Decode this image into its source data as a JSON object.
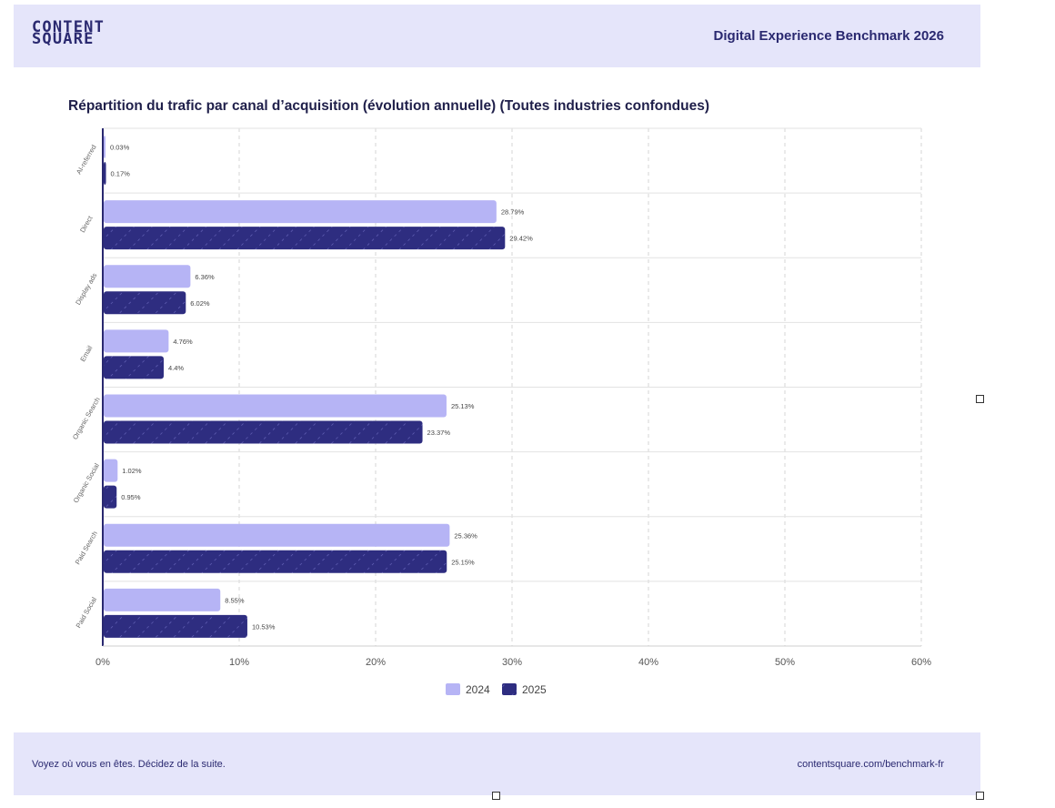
{
  "header": {
    "logo_line1": "CONTENT",
    "logo_line2": "SQUARE",
    "report_title": "Digital Experience Benchmark 2026"
  },
  "footer": {
    "tagline": "Voyez où vous en êtes. Décidez de la suite.",
    "url": "contentsquare.com/benchmark-fr"
  },
  "colors": {
    "series_2024": "#b6b4f5",
    "series_2025": "#2e2d80",
    "band": "#e5e5fa",
    "text_dark": "#2a2970"
  },
  "chart_data": {
    "type": "bar",
    "orientation": "horizontal",
    "title": "Répartition du trafic par canal d’acquisition (évolution annuelle) (Toutes industries confondues)",
    "categories": [
      "AI-referred",
      "Direct",
      "Display ads",
      "Email",
      "Organic Search",
      "Organic Social",
      "Paid Search",
      "Paid Social"
    ],
    "series": [
      {
        "name": "2024",
        "values": [
          0.03,
          28.79,
          6.36,
          4.76,
          25.13,
          1.02,
          25.36,
          8.55
        ],
        "labels": [
          "0.03%",
          "28.79%",
          "6.36%",
          "4.76%",
          "25.13%",
          "1.02%",
          "25.36%",
          "8.55%"
        ]
      },
      {
        "name": "2025",
        "values": [
          0.17,
          29.42,
          6.02,
          4.4,
          23.37,
          0.95,
          25.15,
          10.53
        ],
        "labels": [
          "0.17%",
          "29.42%",
          "6.02%",
          "4.4%",
          "23.37%",
          "0.95%",
          "25.15%",
          "10.53%"
        ],
        "pattern": "diagonal-hatch"
      }
    ],
    "xlim": [
      0,
      60
    ],
    "xticks": [
      "0%",
      "10%",
      "20%",
      "30%",
      "40%",
      "50%",
      "60%"
    ],
    "grid": true,
    "legend": "bottom"
  }
}
